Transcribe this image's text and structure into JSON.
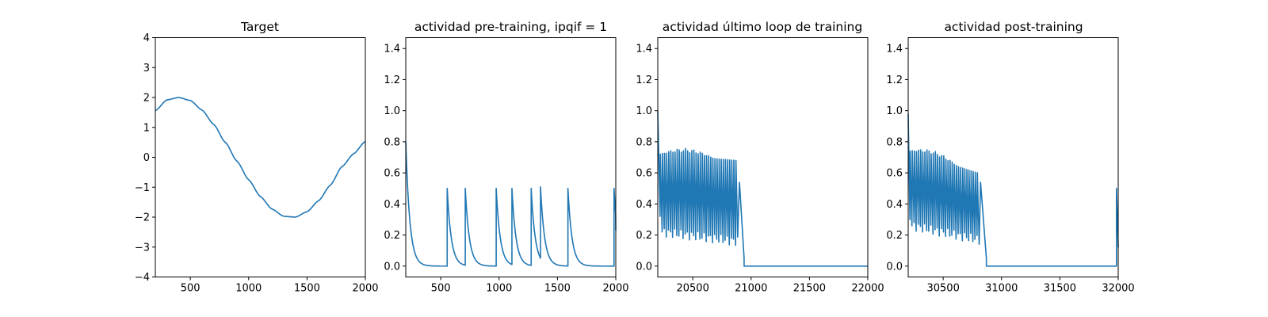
{
  "chart_data": [
    {
      "type": "line",
      "title": "Target",
      "xlim": [
        200,
        2000
      ],
      "ylim": [
        -4,
        4
      ],
      "xticks": [
        500,
        1000,
        1500,
        2000
      ],
      "yticks": [
        -4,
        -3,
        -2,
        -1,
        0,
        1,
        2,
        3,
        4
      ],
      "xtick_labels": [
        "500",
        "1000",
        "1500",
        "2000"
      ],
      "ytick_labels": [
        "−4",
        "−3",
        "−2",
        "−1",
        "0",
        "1",
        "2",
        "3",
        "4"
      ],
      "grid": false,
      "series": [
        {
          "color": "#1f77b4",
          "x": [
            200,
            300,
            400,
            500,
            600,
            700,
            800,
            900,
            1000,
            1100,
            1200,
            1300,
            1400,
            1500,
            1600,
            1700,
            1800,
            1900,
            2000
          ],
          "y": [
            1.56,
            1.92,
            2.0,
            1.9,
            1.58,
            1.1,
            0.5,
            -0.13,
            -0.75,
            -1.31,
            -1.73,
            -1.97,
            -2.0,
            -1.82,
            -1.45,
            -0.93,
            -0.31,
            0.12,
            0.53
          ]
        }
      ]
    },
    {
      "type": "line",
      "title": "actividad pre-training, ipqif = 1",
      "xlim": [
        200,
        2000
      ],
      "ylim": [
        -0.07,
        1.47
      ],
      "xticks": [
        500,
        1000,
        1500,
        2000
      ],
      "yticks": [
        0.0,
        0.2,
        0.4,
        0.6,
        0.8,
        1.0,
        1.2,
        1.4
      ],
      "xtick_labels": [
        "500",
        "1000",
        "1500",
        "2000"
      ],
      "ytick_labels": [
        "0.0",
        "0.2",
        "0.4",
        "0.6",
        "0.8",
        "1.0",
        "1.2",
        "1.4"
      ],
      "grid": false,
      "series": [
        {
          "color": "#1f77b4",
          "initial": {
            "start": 200,
            "peak": 0.8
          },
          "spikes": [
            {
              "t": 555,
              "peak": 0.5
            },
            {
              "t": 710,
              "peak": 0.5
            },
            {
              "t": 975,
              "peak": 0.5
            },
            {
              "t": 1110,
              "peak": 0.5
            },
            {
              "t": 1275,
              "peak": 0.5
            },
            {
              "t": 1355,
              "peak": 0.51
            },
            {
              "t": 1590,
              "peak": 0.5
            },
            {
              "t": 1985,
              "peak": 0.5
            }
          ],
          "tau": 35,
          "end_value": 0.23
        }
      ]
    },
    {
      "type": "line",
      "title": "actividad último loop de training",
      "xlim": [
        20200,
        22000
      ],
      "ylim": [
        -0.07,
        1.47
      ],
      "xticks": [
        20500,
        21000,
        21500,
        22000
      ],
      "yticks": [
        0.0,
        0.2,
        0.4,
        0.6,
        0.8,
        1.0,
        1.2,
        1.4
      ],
      "xtick_labels": [
        "20500",
        "21000",
        "21500",
        "22000"
      ],
      "ytick_labels": [
        "0.0",
        "0.2",
        "0.4",
        "0.6",
        "0.8",
        "1.0",
        "1.2",
        "1.4"
      ],
      "grid": false,
      "series": [
        {
          "color": "#1f77b4",
          "segments": [
            {
              "from": 20200,
              "to": 20220,
              "values": [
                1.0,
                0.32
              ]
            },
            {
              "from": 20220,
              "to": 20900,
              "oscillation": {
                "period": 18,
                "upper_start": 0.72,
                "upper_peak": 0.77,
                "upper_end": 0.68,
                "lower_start": 0.22,
                "lower_end": 0.16
              }
            },
            {
              "from": 20900,
              "to": 20940,
              "values": [
                0.54,
                0.05
              ]
            },
            {
              "from": 20940,
              "to": 22000,
              "values": [
                0.0,
                0.0
              ]
            }
          ]
        }
      ]
    },
    {
      "type": "line",
      "title": "actividad post-training",
      "xlim": [
        30200,
        32000
      ],
      "ylim": [
        -0.07,
        1.47
      ],
      "xticks": [
        30500,
        31000,
        31500,
        32000
      ],
      "yticks": [
        0.0,
        0.2,
        0.4,
        0.6,
        0.8,
        1.0,
        1.2,
        1.4
      ],
      "xtick_labels": [
        "30500",
        "31000",
        "31500",
        "32000"
      ],
      "ytick_labels": [
        "0.0",
        "0.2",
        "0.4",
        "0.6",
        "0.8",
        "1.0",
        "1.2",
        "1.4"
      ],
      "grid": false,
      "series": [
        {
          "color": "#1f77b4",
          "segments": [
            {
              "from": 30200,
              "to": 30215,
              "values": [
                0.98,
                0.3
              ]
            },
            {
              "from": 30215,
              "to": 30820,
              "oscillation": {
                "period": 18,
                "upper_start": 0.74,
                "upper_peak": 0.79,
                "upper_end": 0.6,
                "lower_start": 0.26,
                "lower_end": 0.17
              }
            },
            {
              "from": 30820,
              "to": 30870,
              "values": [
                0.54,
                0.05
              ]
            },
            {
              "from": 30870,
              "to": 31985,
              "values": [
                0.0,
                0.0
              ]
            },
            {
              "from": 31985,
              "to": 32000,
              "values": [
                0.5,
                0.12
              ]
            }
          ]
        }
      ]
    }
  ]
}
